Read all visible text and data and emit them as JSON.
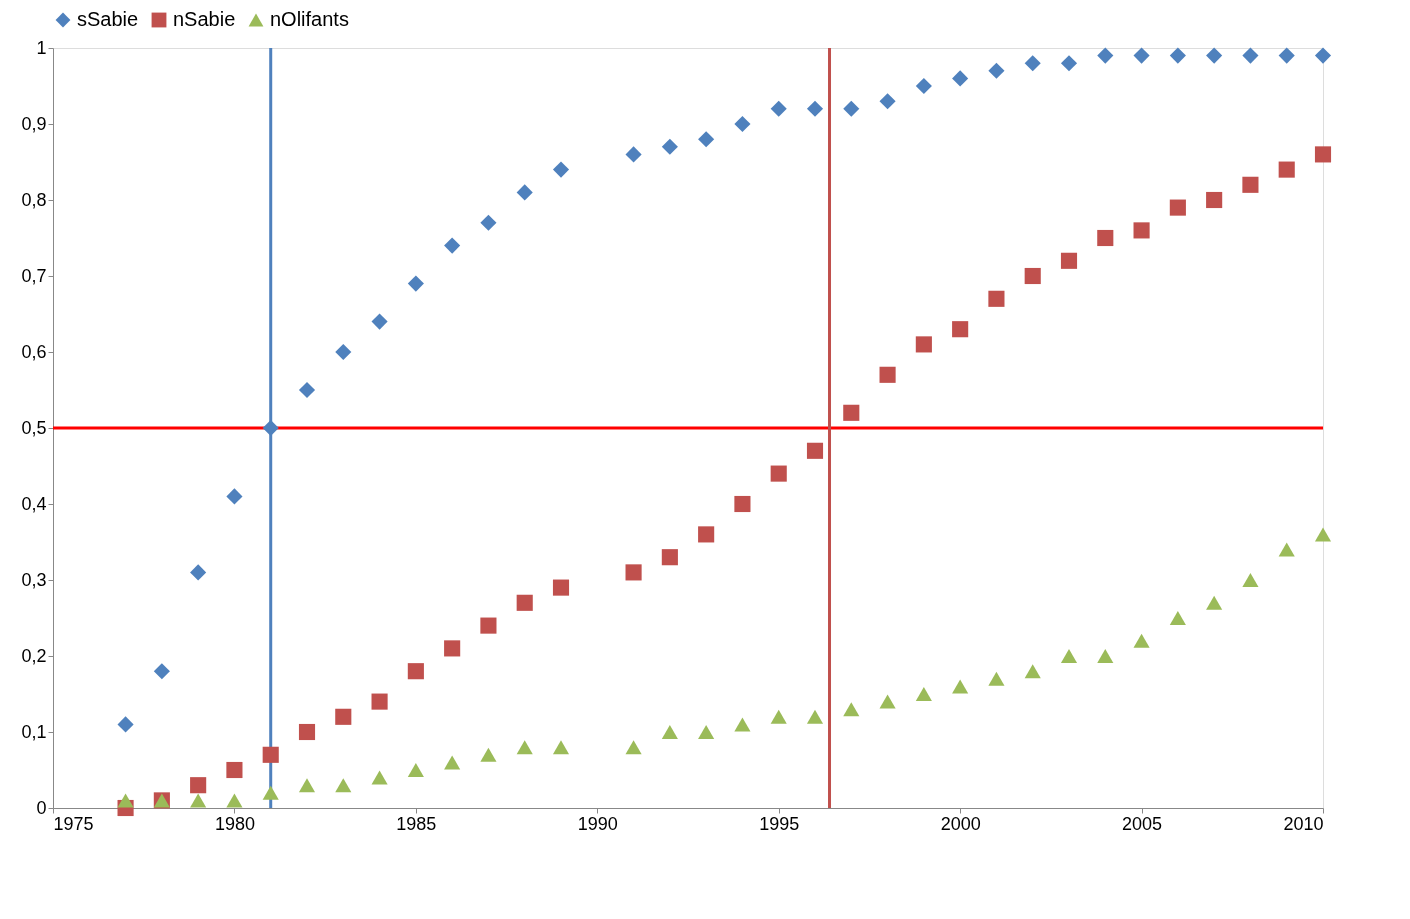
{
  "chart_data": {
    "type": "scatter",
    "x": [
      1977,
      1978,
      1979,
      1980,
      1981,
      1982,
      1983,
      1984,
      1985,
      1986,
      1987,
      1988,
      1989,
      1991,
      1992,
      1993,
      1994,
      1995,
      1996,
      1997,
      1998,
      1999,
      2000,
      2001,
      2002,
      2003,
      2004,
      2005,
      2006,
      2007,
      2008,
      2009,
      2010
    ],
    "series": [
      {
        "name": "sSabie",
        "color": "#4f81bd",
        "marker": "diamond",
        "values": [
          0.11,
          0.18,
          0.31,
          0.41,
          0.5,
          0.55,
          0.6,
          0.64,
          0.69,
          0.74,
          0.77,
          0.81,
          0.84,
          0.86,
          0.87,
          0.88,
          0.9,
          0.92,
          0.92,
          0.92,
          0.93,
          0.95,
          0.96,
          0.97,
          0.98,
          0.98,
          0.99,
          0.99,
          0.99,
          0.99,
          0.99,
          0.99,
          0.99
        ]
      },
      {
        "name": "nSabie",
        "color": "#c0504d",
        "marker": "square",
        "values": [
          0.0,
          0.01,
          0.03,
          0.05,
          0.07,
          0.1,
          0.12,
          0.14,
          0.18,
          0.21,
          0.24,
          0.27,
          0.29,
          0.31,
          0.33,
          0.36,
          0.4,
          0.44,
          0.47,
          0.52,
          0.57,
          0.61,
          0.63,
          0.67,
          0.7,
          0.72,
          0.75,
          0.76,
          0.79,
          0.8,
          0.82,
          0.84,
          0.86
        ]
      },
      {
        "name": "nOlifants",
        "color": "#9bbb59",
        "marker": "triangle",
        "values": [
          0.01,
          0.01,
          0.01,
          0.01,
          0.02,
          0.03,
          0.03,
          0.04,
          0.05,
          0.06,
          0.07,
          0.08,
          0.08,
          0.08,
          0.1,
          0.1,
          0.11,
          0.12,
          0.12,
          0.13,
          0.14,
          0.15,
          0.16,
          0.17,
          0.18,
          0.2,
          0.2,
          0.22,
          0.25,
          0.27,
          0.3,
          0.34,
          0.36
        ]
      }
    ],
    "xlim": [
      1975,
      2010
    ],
    "xticks": [
      1975,
      1980,
      1985,
      1990,
      1995,
      2000,
      2005,
      2010
    ],
    "ylim": [
      0,
      1
    ],
    "yticks": [
      0,
      {
        "value": 0.1,
        "label": "0,1"
      },
      {
        "value": 0.2,
        "label": "0,2"
      },
      {
        "value": 0.3,
        "label": "0,3"
      },
      {
        "value": 0.4,
        "label": "0,4"
      },
      {
        "value": 0.5,
        "label": "0,5"
      },
      {
        "value": 0.6,
        "label": "0,6"
      },
      {
        "value": 0.7,
        "label": "0,7"
      },
      {
        "value": 0.8,
        "label": "0,8"
      },
      {
        "value": 0.9,
        "label": "0,9"
      },
      1
    ],
    "ref_lines": [
      {
        "axis": "y",
        "value": 0.5,
        "color": "#ff0000"
      },
      {
        "axis": "x",
        "value": 1981,
        "color": "#4f81bd"
      },
      {
        "axis": "x",
        "value": 1996.4,
        "color": "#c0504d"
      }
    ],
    "grid": false,
    "legend": "top"
  }
}
